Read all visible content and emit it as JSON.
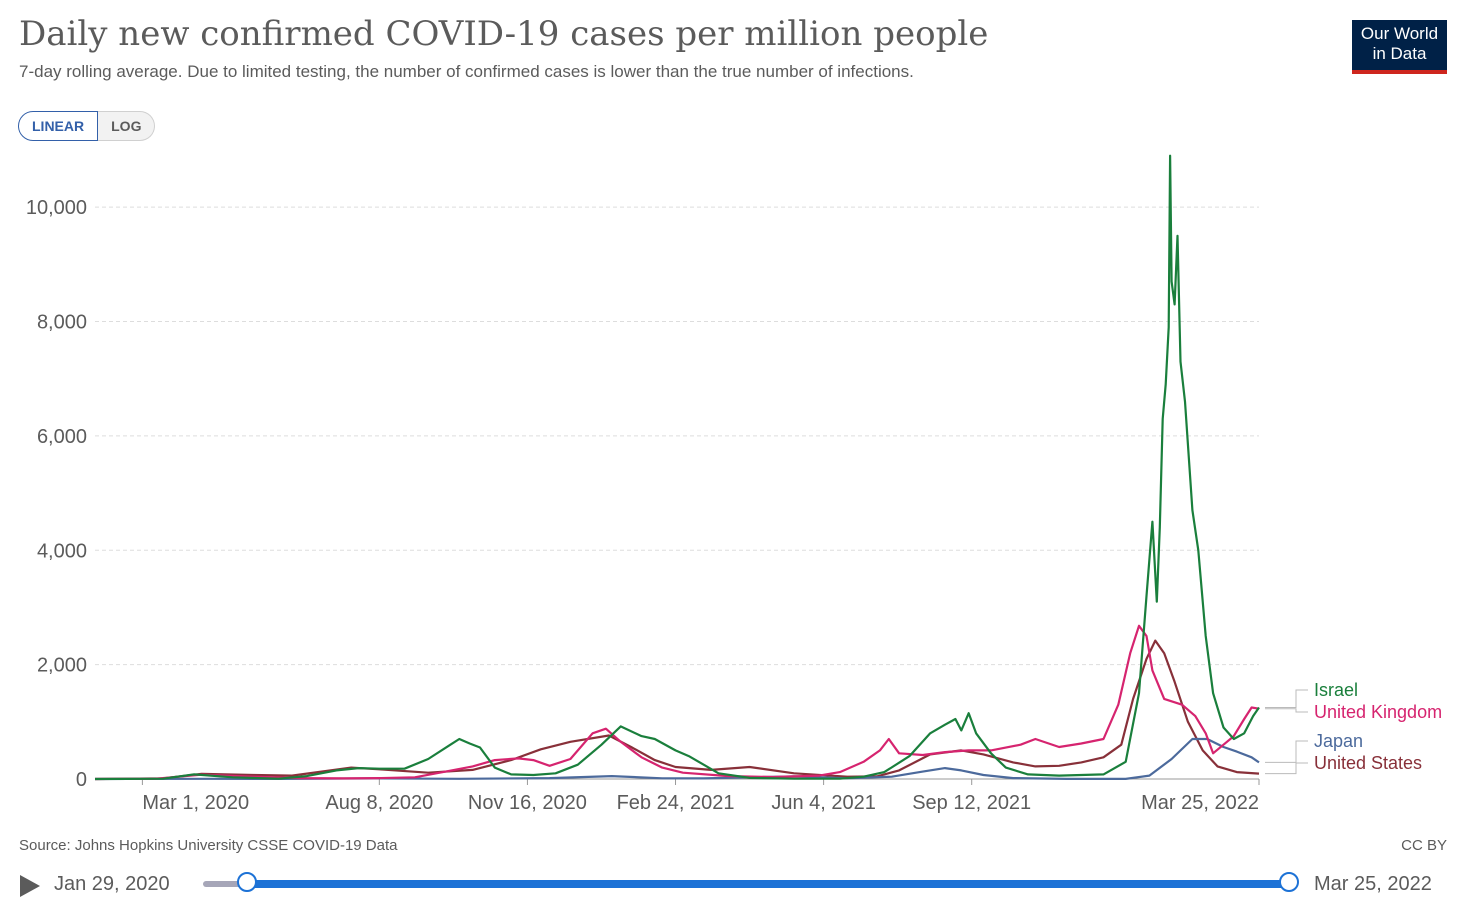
{
  "header": {
    "title": "Daily new confirmed COVID-19 cases per million people",
    "subtitle": "7-day rolling average. Due to limited testing, the number of confirmed cases is lower than the true number of infections.",
    "logo_line1": "Our World",
    "logo_line2": "in Data"
  },
  "scale_toggle": {
    "linear_label": "LINEAR",
    "log_label": "LOG",
    "selected": "LINEAR"
  },
  "colors": {
    "Israel": "#1a7f3c",
    "United Kingdom": "#d6246f",
    "Japan": "#4c6a9c",
    "United States": "#883039",
    "accent": "#1d72d6"
  },
  "chart_data": {
    "type": "line",
    "title": "Daily new confirmed COVID-19 cases per million people",
    "subtitle": "7-day rolling average. Due to limited testing, the number of confirmed cases is lower than the true number of infections.",
    "xlabel": "",
    "ylabel": "",
    "xlim": [
      "2020-01-29",
      "2022-03-25"
    ],
    "ylim": [
      0,
      11000
    ],
    "yticks": [
      0,
      2000,
      4000,
      6000,
      8000,
      10000
    ],
    "ytick_labels": [
      "0",
      "2,000",
      "4,000",
      "6,000",
      "8,000",
      "10,000"
    ],
    "xticks": [
      "2020-03-01",
      "2020-08-08",
      "2020-11-16",
      "2021-02-24",
      "2021-06-04",
      "2021-09-12",
      "2022-03-25"
    ],
    "xtick_labels": [
      "Mar 1, 2020",
      "Aug 8, 2020",
      "Nov 16, 2020",
      "Feb 24, 2021",
      "Jun 4, 2021",
      "Sep 12, 2021",
      "Mar 25, 2022"
    ],
    "grid": "horizontal dashed",
    "legend": "right, labels at line ends",
    "series": [
      {
        "name": "Israel",
        "points": [
          [
            "2020-01-29",
            0
          ],
          [
            "2020-03-15",
            5
          ],
          [
            "2020-04-05",
            80
          ],
          [
            "2020-05-01",
            30
          ],
          [
            "2020-06-01",
            5
          ],
          [
            "2020-06-20",
            50
          ],
          [
            "2020-07-10",
            150
          ],
          [
            "2020-07-25",
            190
          ],
          [
            "2020-08-08",
            180
          ],
          [
            "2020-08-25",
            180
          ],
          [
            "2020-09-10",
            350
          ],
          [
            "2020-09-25",
            600
          ],
          [
            "2020-10-01",
            700
          ],
          [
            "2020-10-08",
            620
          ],
          [
            "2020-10-15",
            550
          ],
          [
            "2020-10-25",
            200
          ],
          [
            "2020-11-05",
            80
          ],
          [
            "2020-11-20",
            70
          ],
          [
            "2020-12-05",
            100
          ],
          [
            "2020-12-20",
            250
          ],
          [
            "2021-01-05",
            600
          ],
          [
            "2021-01-18",
            920
          ],
          [
            "2021-02-01",
            750
          ],
          [
            "2021-02-10",
            700
          ],
          [
            "2021-02-24",
            500
          ],
          [
            "2021-03-05",
            400
          ],
          [
            "2021-03-15",
            250
          ],
          [
            "2021-03-25",
            100
          ],
          [
            "2021-04-15",
            20
          ],
          [
            "2021-05-15",
            5
          ],
          [
            "2021-06-15",
            5
          ],
          [
            "2021-07-01",
            40
          ],
          [
            "2021-07-15",
            120
          ],
          [
            "2021-08-01",
            400
          ],
          [
            "2021-08-15",
            800
          ],
          [
            "2021-08-25",
            950
          ],
          [
            "2021-09-01",
            1050
          ],
          [
            "2021-09-05",
            850
          ],
          [
            "2021-09-10",
            1150
          ],
          [
            "2021-09-15",
            800
          ],
          [
            "2021-09-25",
            450
          ],
          [
            "2021-10-05",
            200
          ],
          [
            "2021-10-20",
            80
          ],
          [
            "2021-11-10",
            60
          ],
          [
            "2021-12-10",
            80
          ],
          [
            "2021-12-25",
            300
          ],
          [
            "2022-01-03",
            1500
          ],
          [
            "2022-01-08",
            3200
          ],
          [
            "2022-01-12",
            4500
          ],
          [
            "2022-01-15",
            3100
          ],
          [
            "2022-01-17",
            4400
          ],
          [
            "2022-01-19",
            6300
          ],
          [
            "2022-01-21",
            6900
          ],
          [
            "2022-01-23",
            7900
          ],
          [
            "2022-01-24",
            10900
          ],
          [
            "2022-01-25",
            8700
          ],
          [
            "2022-01-27",
            8300
          ],
          [
            "2022-01-29",
            9500
          ],
          [
            "2022-01-31",
            7300
          ],
          [
            "2022-02-03",
            6600
          ],
          [
            "2022-02-08",
            4700
          ],
          [
            "2022-02-12",
            4000
          ],
          [
            "2022-02-17",
            2500
          ],
          [
            "2022-02-22",
            1500
          ],
          [
            "2022-03-01",
            900
          ],
          [
            "2022-03-08",
            700
          ],
          [
            "2022-03-15",
            800
          ],
          [
            "2022-03-21",
            1100
          ],
          [
            "2022-03-25",
            1250
          ]
        ]
      },
      {
        "name": "United Kingdom",
        "points": [
          [
            "2020-01-29",
            0
          ],
          [
            "2020-03-10",
            5
          ],
          [
            "2020-04-10",
            75
          ],
          [
            "2020-05-15",
            40
          ],
          [
            "2020-06-15",
            15
          ],
          [
            "2020-07-15",
            10
          ],
          [
            "2020-08-08",
            15
          ],
          [
            "2020-09-01",
            30
          ],
          [
            "2020-09-20",
            120
          ],
          [
            "2020-10-10",
            220
          ],
          [
            "2020-10-25",
            330
          ],
          [
            "2020-11-10",
            360
          ],
          [
            "2020-11-20",
            330
          ],
          [
            "2020-12-01",
            230
          ],
          [
            "2020-12-15",
            350
          ],
          [
            "2020-12-30",
            800
          ],
          [
            "2021-01-08",
            880
          ],
          [
            "2021-01-18",
            650
          ],
          [
            "2021-02-01",
            380
          ],
          [
            "2021-02-15",
            200
          ],
          [
            "2021-03-01",
            110
          ],
          [
            "2021-04-01",
            50
          ],
          [
            "2021-05-01",
            35
          ],
          [
            "2021-06-01",
            60
          ],
          [
            "2021-06-15",
            120
          ],
          [
            "2021-07-01",
            300
          ],
          [
            "2021-07-12",
            500
          ],
          [
            "2021-07-18",
            700
          ],
          [
            "2021-07-25",
            450
          ],
          [
            "2021-08-10",
            420
          ],
          [
            "2021-08-25",
            470
          ],
          [
            "2021-09-10",
            500
          ],
          [
            "2021-09-25",
            500
          ],
          [
            "2021-10-15",
            600
          ],
          [
            "2021-10-25",
            700
          ],
          [
            "2021-11-10",
            560
          ],
          [
            "2021-11-25",
            620
          ],
          [
            "2021-12-10",
            700
          ],
          [
            "2021-12-20",
            1300
          ],
          [
            "2021-12-28",
            2200
          ],
          [
            "2022-01-03",
            2680
          ],
          [
            "2022-01-08",
            2500
          ],
          [
            "2022-01-12",
            1900
          ],
          [
            "2022-01-20",
            1400
          ],
          [
            "2022-02-01",
            1300
          ],
          [
            "2022-02-10",
            1100
          ],
          [
            "2022-02-17",
            800
          ],
          [
            "2022-02-22",
            450
          ],
          [
            "2022-03-01",
            600
          ],
          [
            "2022-03-08",
            750
          ],
          [
            "2022-03-15",
            1050
          ],
          [
            "2022-03-20",
            1250
          ],
          [
            "2022-03-25",
            1230
          ]
        ]
      },
      {
        "name": "Japan",
        "points": [
          [
            "2020-01-29",
            0
          ],
          [
            "2020-04-15",
            4
          ],
          [
            "2020-06-01",
            1
          ],
          [
            "2020-08-05",
            10
          ],
          [
            "2020-10-01",
            4
          ],
          [
            "2020-12-01",
            15
          ],
          [
            "2021-01-12",
            50
          ],
          [
            "2021-02-15",
            12
          ],
          [
            "2021-03-15",
            10
          ],
          [
            "2021-05-15",
            45
          ],
          [
            "2021-06-20",
            12
          ],
          [
            "2021-07-20",
            40
          ],
          [
            "2021-08-10",
            130
          ],
          [
            "2021-08-25",
            190
          ],
          [
            "2021-09-05",
            150
          ],
          [
            "2021-09-20",
            70
          ],
          [
            "2021-10-10",
            15
          ],
          [
            "2021-11-15",
            1
          ],
          [
            "2021-12-25",
            2
          ],
          [
            "2022-01-10",
            60
          ],
          [
            "2022-01-25",
            350
          ],
          [
            "2022-02-08",
            700
          ],
          [
            "2022-02-18",
            700
          ],
          [
            "2022-03-01",
            560
          ],
          [
            "2022-03-10",
            480
          ],
          [
            "2022-03-20",
            380
          ],
          [
            "2022-03-25",
            290
          ]
        ]
      },
      {
        "name": "United States",
        "points": [
          [
            "2020-01-29",
            0
          ],
          [
            "2020-03-15",
            10
          ],
          [
            "2020-04-10",
            90
          ],
          [
            "2020-05-15",
            70
          ],
          [
            "2020-06-10",
            60
          ],
          [
            "2020-07-20",
            200
          ],
          [
            "2020-08-08",
            170
          ],
          [
            "2020-09-10",
            110
          ],
          [
            "2020-10-10",
            160
          ],
          [
            "2020-11-05",
            330
          ],
          [
            "2020-11-25",
            520
          ],
          [
            "2020-12-15",
            650
          ],
          [
            "2021-01-10",
            760
          ],
          [
            "2021-01-25",
            560
          ],
          [
            "2021-02-10",
            330
          ],
          [
            "2021-02-24",
            210
          ],
          [
            "2021-03-20",
            160
          ],
          [
            "2021-04-15",
            210
          ],
          [
            "2021-05-15",
            100
          ],
          [
            "2021-06-20",
            40
          ],
          [
            "2021-07-10",
            45
          ],
          [
            "2021-07-25",
            150
          ],
          [
            "2021-08-15",
            430
          ],
          [
            "2021-09-05",
            500
          ],
          [
            "2021-09-20",
            430
          ],
          [
            "2021-10-10",
            290
          ],
          [
            "2021-10-25",
            220
          ],
          [
            "2021-11-10",
            230
          ],
          [
            "2021-11-25",
            290
          ],
          [
            "2021-12-10",
            380
          ],
          [
            "2021-12-22",
            600
          ],
          [
            "2021-12-30",
            1400
          ],
          [
            "2022-01-08",
            2100
          ],
          [
            "2022-01-14",
            2420
          ],
          [
            "2022-01-20",
            2200
          ],
          [
            "2022-01-27",
            1700
          ],
          [
            "2022-02-05",
            1000
          ],
          [
            "2022-02-15",
            500
          ],
          [
            "2022-02-25",
            220
          ],
          [
            "2022-03-10",
            120
          ],
          [
            "2022-03-25",
            95
          ]
        ]
      }
    ]
  },
  "footer": {
    "source": "Source: Johns Hopkins University CSSE COVID-19 Data",
    "license": "CC BY"
  },
  "timeline": {
    "start_label": "Jan 29, 2020",
    "end_label": "Mar 25, 2022",
    "start_value": "2020-01-29",
    "end_value": "2022-03-25"
  }
}
